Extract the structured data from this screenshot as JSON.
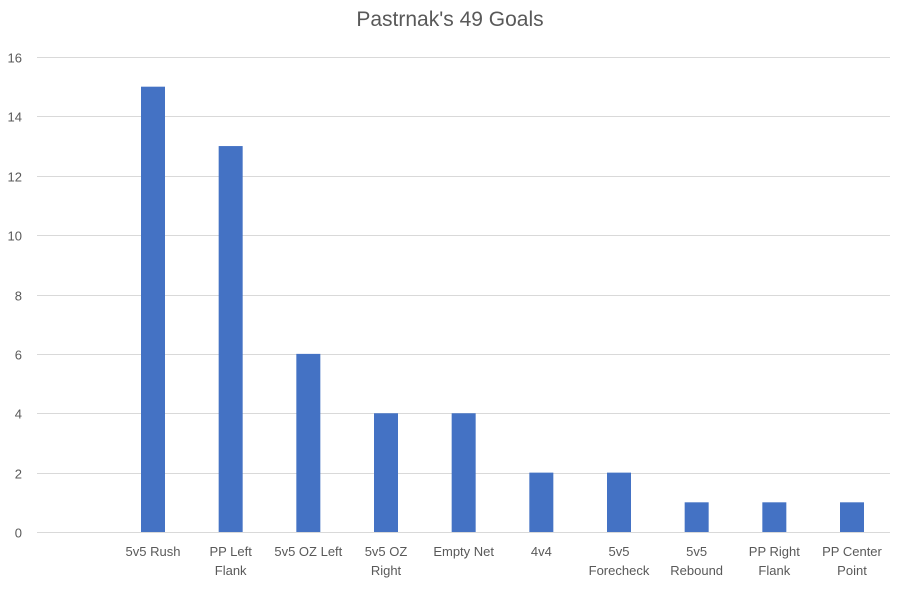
{
  "chart_data": {
    "type": "bar",
    "title": "Pastrnak's 49 Goals",
    "xlabel": "",
    "ylabel": "",
    "categories": [
      [
        "5v5 Rush"
      ],
      [
        "PP Left",
        "Flank"
      ],
      [
        "5v5 OZ Left"
      ],
      [
        "5v5 OZ",
        "Right"
      ],
      [
        "Empty Net"
      ],
      [
        "4v4"
      ],
      [
        "5v5",
        "Forecheck"
      ],
      [
        "5v5",
        "Rebound"
      ],
      [
        "PP Right",
        "Flank"
      ],
      [
        "PP Center",
        "Point"
      ]
    ],
    "values": [
      15,
      13,
      6,
      4,
      4,
      2,
      2,
      1,
      1,
      1
    ],
    "ylim": [
      0,
      16
    ],
    "yticks": [
      0,
      2,
      4,
      6,
      8,
      10,
      12,
      14,
      16
    ],
    "grid": true,
    "legend": "none",
    "colors": {
      "bar": "#4472C4",
      "grid": "#D9D9D9",
      "text": "#595959",
      "title": "#595959"
    }
  }
}
